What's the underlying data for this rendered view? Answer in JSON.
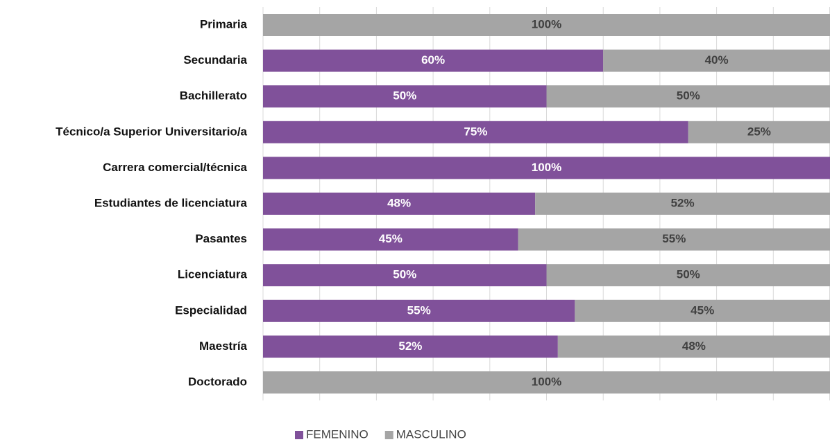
{
  "chart_data": {
    "type": "stacked-barh",
    "categories": [
      "Primaria",
      "Secundaria",
      "Bachillerato",
      "Técnico/a Superior Universitario/a",
      "Carrera comercial/técnica",
      "Estudiantes de licenciatura",
      "Pasantes",
      "Licenciatura",
      "Especialidad",
      "Maestría",
      "Doctorado"
    ],
    "series": [
      {
        "name": "FEMENINO",
        "color": "#80519a",
        "values": [
          0,
          60,
          50,
          75,
          100,
          48,
          45,
          50,
          55,
          52,
          0
        ],
        "value_labels": [
          null,
          "60%",
          "50%",
          "75%",
          "100%",
          "48%",
          "45%",
          "50%",
          "55%",
          "52%",
          null
        ]
      },
      {
        "name": "MASCULINO",
        "color": "#a5a5a5",
        "values": [
          100,
          40,
          50,
          25,
          0,
          52,
          55,
          50,
          45,
          48,
          100
        ],
        "value_labels": [
          "100%",
          "40%",
          "50%",
          "25%",
          null,
          "52%",
          "55%",
          "50%",
          "45%",
          "48%",
          "100%"
        ]
      }
    ],
    "xlim": [
      0,
      100
    ],
    "xticks": [
      0,
      10,
      20,
      30,
      40,
      50,
      60,
      70,
      80,
      90,
      100
    ],
    "grid": true,
    "legend": "bottom"
  }
}
